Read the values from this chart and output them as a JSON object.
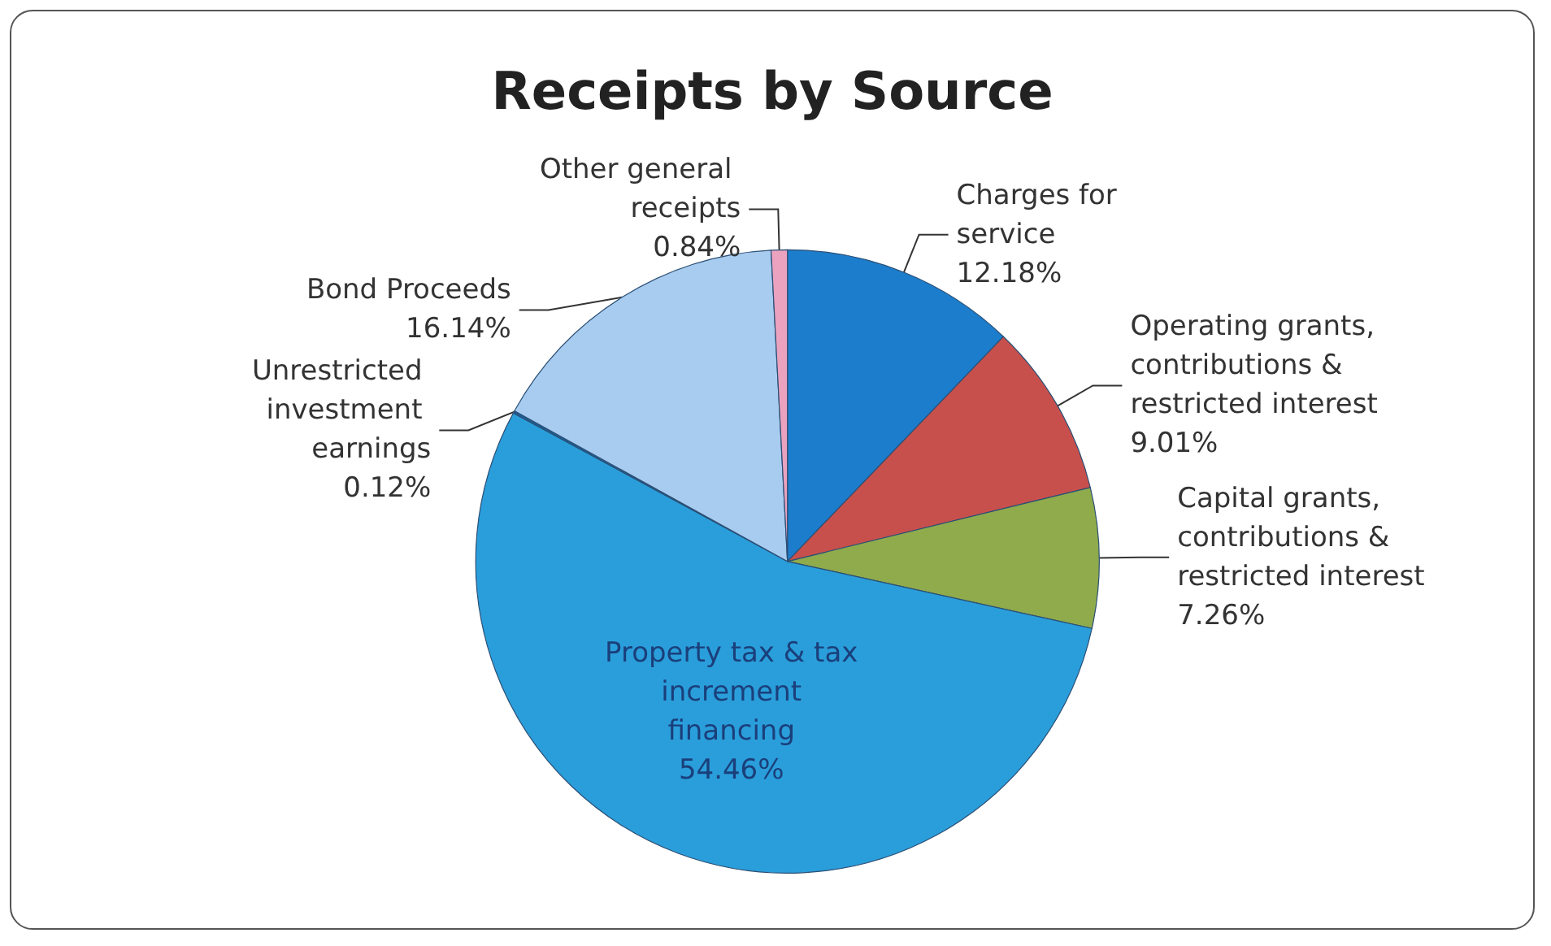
{
  "chart_data": {
    "type": "pie",
    "title": "Receipts by Source",
    "categories": [
      "Charges for service",
      "Operating grants, contributions & restricted interest",
      "Capital grants, contributions & restricted interest",
      "Property tax & tax increment financing",
      "Unrestricted investment earnings",
      "Bond Proceeds",
      "Other general receipts"
    ],
    "values": [
      12.18,
      9.01,
      7.26,
      54.46,
      0.12,
      16.14,
      0.84
    ],
    "value_labels": [
      "12.18%",
      "9.01%",
      "7.26%",
      "54.46%",
      "0.12%",
      "16.14%",
      "0.84%"
    ],
    "colors": [
      "#1c7dcc",
      "#c8504c",
      "#8fab4c",
      "#2a9edb",
      "#1b5f99",
      "#a8ccf0",
      "#eaa2bf"
    ],
    "legend": false
  }
}
